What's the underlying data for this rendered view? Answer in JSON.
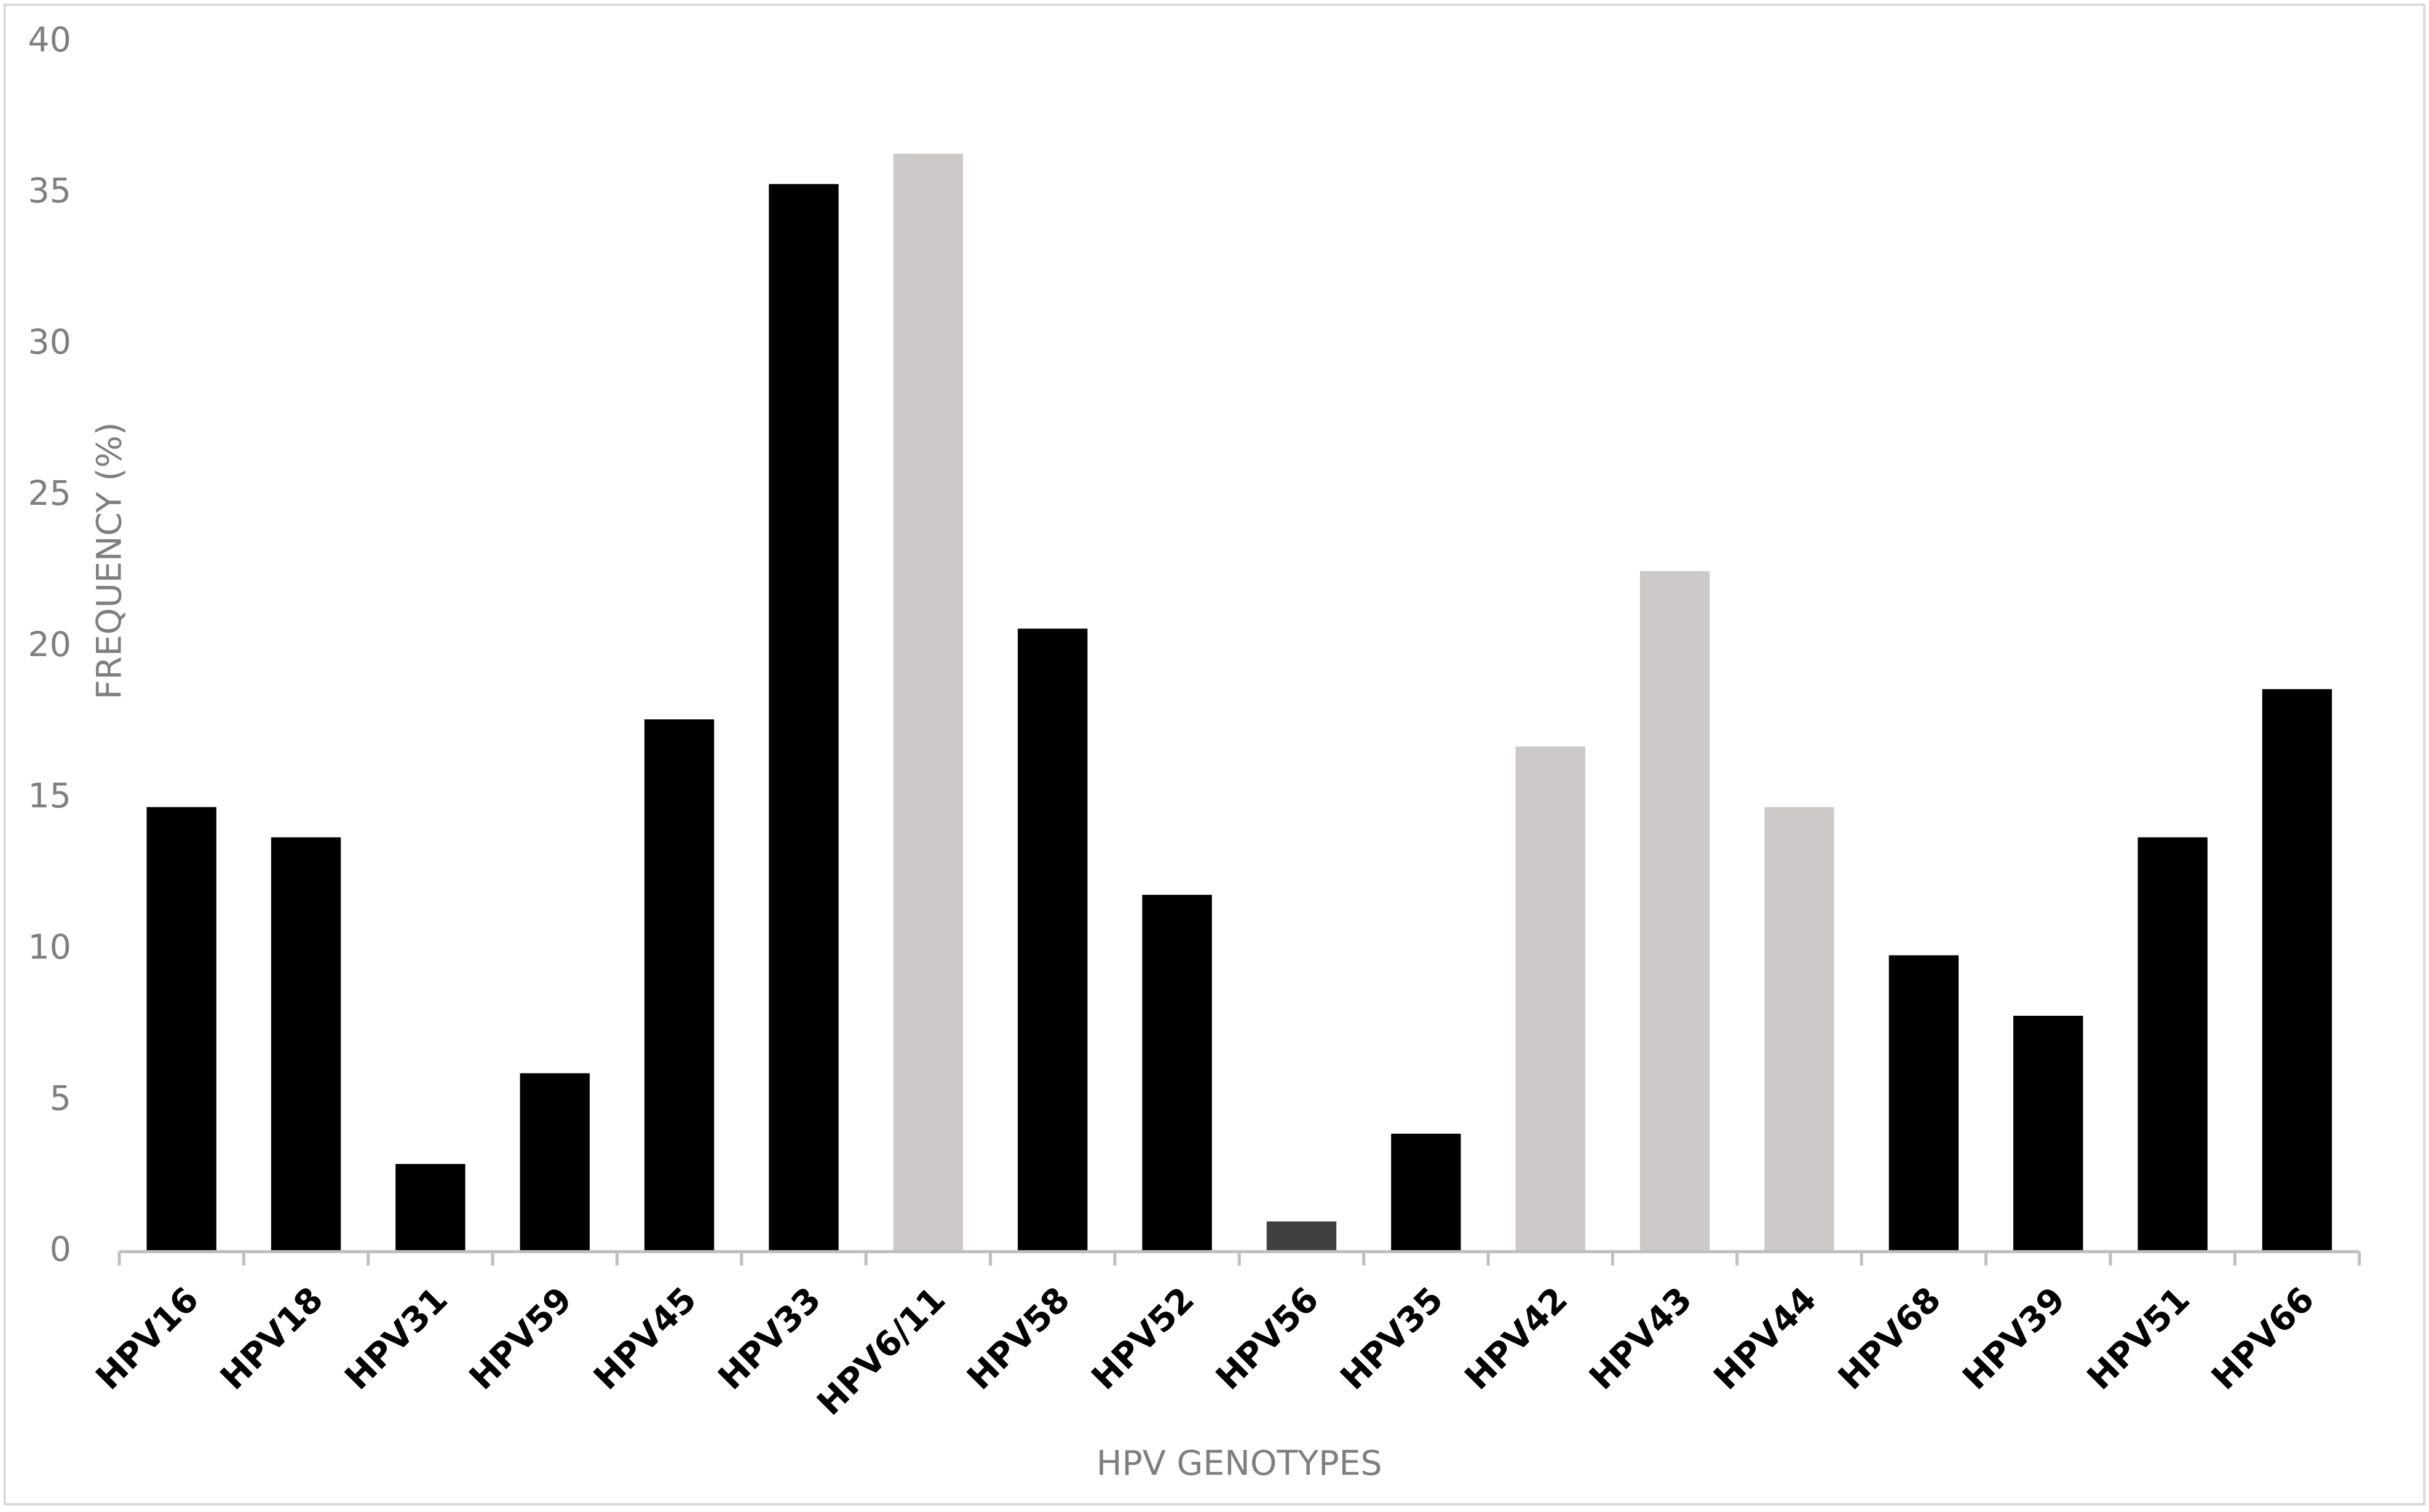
{
  "chart_data": {
    "type": "bar",
    "x_label": "HPV GENOTYPES",
    "y_label": "FREQUENCY (%)",
    "categories": [
      "HPV16",
      "HPV18",
      "HPV31",
      "HPV59",
      "HPV45",
      "HPV33",
      "HPV6/11",
      "HPV58",
      "HPV52",
      "HPV56",
      "HPV35",
      "HPV42",
      "HPV43",
      "HPV44",
      "HPV68",
      "HPV39",
      "HPV51",
      "HPV66"
    ],
    "values": [
      14.7,
      13.7,
      2.9,
      5.9,
      17.6,
      35.3,
      36.3,
      20.6,
      11.8,
      1.0,
      3.9,
      16.7,
      22.5,
      14.7,
      9.8,
      7.8,
      13.7,
      18.6
    ],
    "colors": [
      "#000000",
      "#000000",
      "#000000",
      "#000000",
      "#000000",
      "#000000",
      "#cdc9c8",
      "#000000",
      "#000000",
      "#404040",
      "#000000",
      "#cdc9c8",
      "#cdc9c8",
      "#cdc9c8",
      "#000000",
      "#000000",
      "#000000",
      "#000000"
    ],
    "ylim": [
      0,
      40
    ],
    "yticks": [
      0,
      5,
      10,
      15,
      20,
      25,
      30,
      35,
      40
    ],
    "grid": false
  }
}
